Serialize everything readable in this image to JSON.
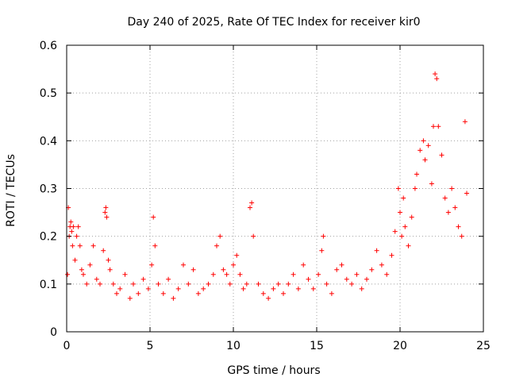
{
  "chart_data": {
    "type": "scatter",
    "title": "Day 240 of 2025, Rate Of TEC Index for receiver kir0",
    "xlabel": "GPS time / hours",
    "ylabel": "ROTI / TECUs",
    "xlim": [
      0,
      25
    ],
    "ylim": [
      0,
      0.6
    ],
    "xticks": [
      "0",
      "5",
      "10",
      "15",
      "20",
      "25"
    ],
    "yticks": [
      "0",
      "0.1",
      "0.2",
      "0.3",
      "0.4",
      "0.5",
      "0.6"
    ],
    "grid": true,
    "marker": "plus",
    "colors": {
      "points": "#ff0000"
    },
    "series": [
      {
        "x": [
          0.05,
          0.1,
          0.15,
          0.2,
          0.25,
          0.3,
          0.35,
          0.4,
          0.5,
          0.6,
          0.7,
          0.8,
          0.9,
          1.0,
          1.2,
          1.4,
          1.6,
          1.8,
          2.0,
          2.2,
          2.3,
          2.35,
          2.4,
          2.5,
          2.6,
          2.8,
          3.0,
          3.2,
          3.5,
          3.8,
          4.0,
          4.3,
          4.6,
          4.9,
          5.1,
          5.2,
          5.3,
          5.5,
          5.8,
          6.1,
          6.4,
          6.7,
          7.0,
          7.3,
          7.6,
          7.9,
          8.2,
          8.5,
          8.8,
          9.0,
          9.2,
          9.4,
          9.6,
          9.8,
          10.0,
          10.2,
          10.4,
          10.6,
          10.8,
          11.0,
          11.1,
          11.2,
          11.5,
          11.8,
          12.1,
          12.4,
          12.7,
          13.0,
          13.3,
          13.6,
          13.9,
          14.2,
          14.5,
          14.8,
          15.1,
          15.3,
          15.4,
          15.6,
          15.9,
          16.2,
          16.5,
          16.8,
          17.1,
          17.4,
          17.7,
          18.0,
          18.3,
          18.6,
          18.9,
          19.2,
          19.5,
          19.7,
          19.9,
          20.0,
          20.1,
          20.2,
          20.3,
          20.5,
          20.7,
          20.9,
          21.0,
          21.2,
          21.4,
          21.5,
          21.7,
          21.9,
          22.0,
          22.1,
          22.2,
          22.3,
          22.5,
          22.7,
          22.9,
          23.1,
          23.3,
          23.5,
          23.7,
          23.9,
          24.0
        ],
        "y": [
          0.12,
          0.26,
          0.2,
          0.22,
          0.23,
          0.21,
          0.18,
          0.22,
          0.15,
          0.2,
          0.22,
          0.18,
          0.13,
          0.12,
          0.1,
          0.14,
          0.18,
          0.11,
          0.1,
          0.17,
          0.25,
          0.26,
          0.24,
          0.15,
          0.13,
          0.1,
          0.08,
          0.09,
          0.12,
          0.07,
          0.1,
          0.08,
          0.11,
          0.09,
          0.14,
          0.24,
          0.18,
          0.1,
          0.08,
          0.11,
          0.07,
          0.09,
          0.14,
          0.1,
          0.13,
          0.08,
          0.09,
          0.1,
          0.12,
          0.18,
          0.2,
          0.13,
          0.12,
          0.1,
          0.14,
          0.16,
          0.12,
          0.09,
          0.1,
          0.26,
          0.27,
          0.2,
          0.1,
          0.08,
          0.07,
          0.09,
          0.1,
          0.08,
          0.1,
          0.12,
          0.09,
          0.14,
          0.11,
          0.09,
          0.12,
          0.17,
          0.2,
          0.1,
          0.08,
          0.13,
          0.14,
          0.11,
          0.1,
          0.12,
          0.09,
          0.11,
          0.13,
          0.17,
          0.14,
          0.12,
          0.16,
          0.21,
          0.3,
          0.25,
          0.2,
          0.28,
          0.22,
          0.18,
          0.24,
          0.3,
          0.33,
          0.38,
          0.4,
          0.36,
          0.39,
          0.31,
          0.43,
          0.54,
          0.53,
          0.43,
          0.37,
          0.28,
          0.25,
          0.3,
          0.26,
          0.22,
          0.2,
          0.44,
          0.29
        ]
      }
    ]
  }
}
